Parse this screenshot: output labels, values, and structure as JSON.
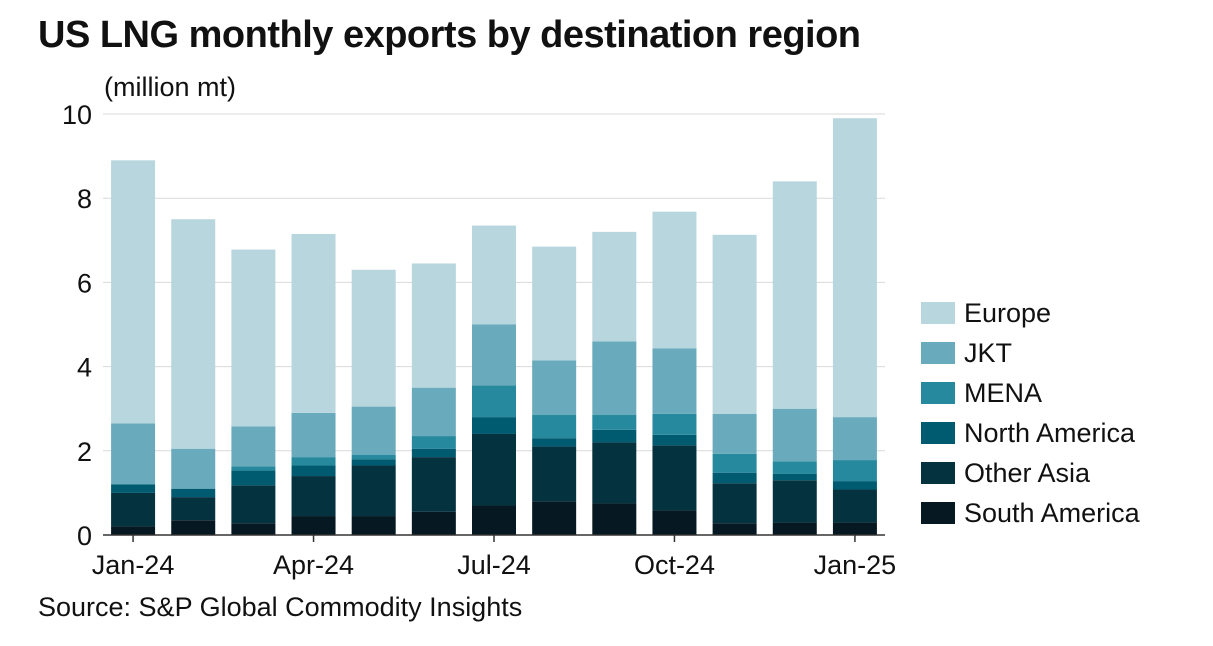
{
  "title": "US LNG monthly exports by destination region",
  "unit": "(million mt)",
  "source": "Source: S&P Global Commodity Insights",
  "chart_data": {
    "type": "bar",
    "stacked": true,
    "x": [
      "Jan-24",
      "Feb-24",
      "Mar-24",
      "Apr-24",
      "May-24",
      "Jun-24",
      "Jul-24",
      "Aug-24",
      "Sep-24",
      "Oct-24",
      "Nov-24",
      "Dec-24",
      "Jan-25"
    ],
    "x_tick_labels": [
      "Jan-24",
      "Apr-24",
      "Jul-24",
      "Oct-24",
      "Jan-25"
    ],
    "y_ticks": [
      "0",
      "2",
      "4",
      "6",
      "8",
      "10"
    ],
    "ylim": [
      0,
      10
    ],
    "grid": true,
    "legend_position": "right",
    "series": [
      {
        "name": "South America",
        "color": "#061821",
        "values": [
          0.2,
          0.35,
          0.28,
          0.45,
          0.45,
          0.55,
          0.7,
          0.8,
          0.75,
          0.58,
          0.28,
          0.3,
          0.3
        ]
      },
      {
        "name": "Other Asia",
        "color": "#05323f",
        "values": [
          0.8,
          0.55,
          0.9,
          0.95,
          1.2,
          1.3,
          1.7,
          1.3,
          1.45,
          1.55,
          0.95,
          1.0,
          0.78
        ]
      },
      {
        "name": "North America",
        "color": "#005a70",
        "values": [
          0.2,
          0.2,
          0.35,
          0.25,
          0.15,
          0.2,
          0.4,
          0.2,
          0.3,
          0.25,
          0.25,
          0.15,
          0.2
        ]
      },
      {
        "name": "MENA",
        "color": "#26899d",
        "values": [
          0.0,
          0.0,
          0.1,
          0.2,
          0.1,
          0.3,
          0.75,
          0.55,
          0.35,
          0.5,
          0.45,
          0.3,
          0.5
        ]
      },
      {
        "name": "JKT",
        "color": "#69abbc",
        "values": [
          1.45,
          0.95,
          0.95,
          1.05,
          1.15,
          1.15,
          1.45,
          1.3,
          1.75,
          1.55,
          0.95,
          1.25,
          1.02
        ]
      },
      {
        "name": "Europe",
        "color": "#b8d6de",
        "values": [
          6.25,
          5.45,
          4.2,
          4.25,
          3.25,
          2.95,
          2.35,
          2.7,
          2.6,
          3.25,
          4.25,
          5.4,
          7.1
        ]
      }
    ]
  }
}
